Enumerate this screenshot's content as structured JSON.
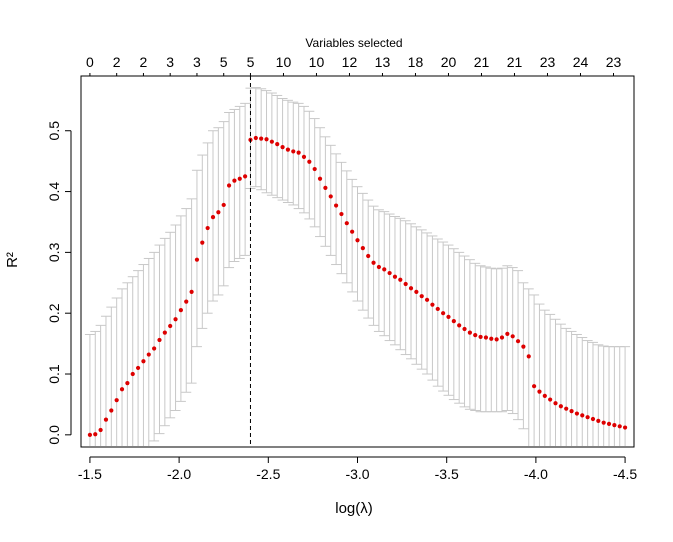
{
  "chart_data": {
    "type": "scatter",
    "title": "",
    "xlabel": "log(λ)",
    "ylabel": "R²",
    "top_axis_label": "Variables selected",
    "xlim": [
      -1.45,
      -4.55
    ],
    "ylim": [
      -0.02,
      0.59
    ],
    "x_ticks": [
      -1.5,
      -2.0,
      -2.5,
      -3.0,
      -3.5,
      -4.0,
      -4.5
    ],
    "x_tick_labels": [
      "-1.5",
      "-2.0",
      "-2.5",
      "-3.0",
      "-3.5",
      "-4.0",
      "-4.5"
    ],
    "y_ticks": [
      0.0,
      0.1,
      0.2,
      0.3,
      0.4,
      0.5
    ],
    "y_tick_labels": [
      "0.0",
      "0.1",
      "0.2",
      "0.3",
      "0.4",
      "0.5"
    ],
    "top_ticks": {
      "x": [
        -1.5,
        -1.65,
        -1.8,
        -1.95,
        -2.1,
        -2.25,
        -2.4,
        -2.585,
        -2.77,
        -2.955,
        -3.14,
        -3.325,
        -3.51,
        -3.695,
        -3.88,
        -4.065,
        -4.25,
        -4.435
      ],
      "labels": [
        "0",
        "2",
        "2",
        "3",
        "3",
        "5",
        "5",
        "10",
        "10",
        "12",
        "13",
        "18",
        "20",
        "21",
        "21",
        "23",
        "24",
        "23"
      ]
    },
    "vline_x": -2.4,
    "grid": false,
    "legend": "none",
    "point_color": "#dd0000",
    "errorbar_color": "#c8c8c8",
    "series": [
      {
        "x": [
          -1.5,
          -1.53,
          -1.56,
          -1.59,
          -1.62,
          -1.65,
          -1.68,
          -1.71,
          -1.74,
          -1.77,
          -1.8,
          -1.83,
          -1.86,
          -1.89,
          -1.92,
          -1.95,
          -1.98,
          -2.01,
          -2.04,
          -2.07,
          -2.1,
          -2.13,
          -2.16,
          -2.19,
          -2.22,
          -2.25,
          -2.28,
          -2.31,
          -2.34,
          -2.37,
          -2.4,
          -2.43,
          -2.46,
          -2.49,
          -2.52,
          -2.55,
          -2.58,
          -2.61,
          -2.64,
          -2.67,
          -2.7,
          -2.73,
          -2.76,
          -2.79,
          -2.82,
          -2.85,
          -2.88,
          -2.91,
          -2.94,
          -2.97,
          -3.0,
          -3.03,
          -3.06,
          -3.09,
          -3.12,
          -3.15,
          -3.18,
          -3.21,
          -3.24,
          -3.27,
          -3.3,
          -3.33,
          -3.36,
          -3.39,
          -3.42,
          -3.45,
          -3.48,
          -3.51,
          -3.54,
          -3.57,
          -3.6,
          -3.63,
          -3.66,
          -3.69,
          -3.72,
          -3.75,
          -3.78,
          -3.81,
          -3.84,
          -3.87,
          -3.9,
          -3.93,
          -3.96,
          -3.99,
          -4.02,
          -4.05,
          -4.08,
          -4.11,
          -4.14,
          -4.17,
          -4.2,
          -4.23,
          -4.26,
          -4.29,
          -4.32,
          -4.35,
          -4.38,
          -4.41,
          -4.44,
          -4.47,
          -4.5
        ],
        "y": [
          0.0,
          0.001,
          0.008,
          0.025,
          0.04,
          0.057,
          0.075,
          0.085,
          0.1,
          0.11,
          0.121,
          0.132,
          0.142,
          0.156,
          0.168,
          0.179,
          0.19,
          0.205,
          0.219,
          0.235,
          0.288,
          0.316,
          0.34,
          0.358,
          0.366,
          0.378,
          0.41,
          0.418,
          0.421,
          0.425,
          0.485,
          0.488,
          0.487,
          0.486,
          0.482,
          0.478,
          0.473,
          0.469,
          0.466,
          0.464,
          0.457,
          0.449,
          0.437,
          0.421,
          0.406,
          0.392,
          0.377,
          0.363,
          0.348,
          0.334,
          0.32,
          0.307,
          0.294,
          0.283,
          0.276,
          0.272,
          0.266,
          0.26,
          0.255,
          0.248,
          0.241,
          0.235,
          0.228,
          0.222,
          0.214,
          0.207,
          0.2,
          0.194,
          0.187,
          0.18,
          0.174,
          0.168,
          0.164,
          0.161,
          0.16,
          0.158,
          0.157,
          0.16,
          0.166,
          0.162,
          0.154,
          0.145,
          0.129,
          0.08,
          0.071,
          0.064,
          0.058,
          0.052,
          0.047,
          0.043,
          0.039,
          0.035,
          0.032,
          0.029,
          0.026,
          0.023,
          0.02,
          0.018,
          0.016,
          0.014,
          0.012
        ],
        "lower": [
          -0.165,
          -0.155,
          -0.145,
          -0.13,
          -0.115,
          -0.1,
          -0.085,
          -0.075,
          -0.06,
          -0.048,
          -0.035,
          -0.022,
          -0.01,
          0.002,
          0.015,
          0.028,
          0.04,
          0.055,
          0.07,
          0.085,
          0.145,
          0.175,
          0.2,
          0.22,
          0.23,
          0.245,
          0.275,
          0.285,
          0.29,
          0.295,
          0.405,
          0.408,
          0.403,
          0.398,
          0.394,
          0.39,
          0.386,
          0.382,
          0.378,
          0.372,
          0.365,
          0.355,
          0.342,
          0.326,
          0.31,
          0.295,
          0.28,
          0.265,
          0.25,
          0.235,
          0.22,
          0.205,
          0.192,
          0.18,
          0.17,
          0.163,
          0.155,
          0.148,
          0.14,
          0.132,
          0.125,
          0.116,
          0.108,
          0.1,
          0.09,
          0.08,
          0.072,
          0.065,
          0.058,
          0.052,
          0.046,
          0.042,
          0.04,
          0.038,
          0.038,
          0.038,
          0.038,
          0.038,
          0.04,
          0.035,
          0.025,
          0.01,
          -0.02,
          -0.095,
          -0.1,
          -0.105,
          -0.11,
          -0.115,
          -0.12,
          -0.122,
          -0.124,
          -0.126,
          -0.128,
          -0.128,
          -0.13,
          -0.13,
          -0.13,
          -0.13,
          -0.13,
          -0.13,
          -0.13
        ],
        "upper": [
          0.165,
          0.17,
          0.18,
          0.195,
          0.21,
          0.225,
          0.24,
          0.25,
          0.26,
          0.27,
          0.28,
          0.29,
          0.3,
          0.312,
          0.323,
          0.333,
          0.345,
          0.36,
          0.372,
          0.388,
          0.435,
          0.46,
          0.48,
          0.5,
          0.505,
          0.515,
          0.53,
          0.535,
          0.54,
          0.545,
          0.57,
          0.571,
          0.569,
          0.566,
          0.562,
          0.558,
          0.553,
          0.55,
          0.547,
          0.545,
          0.54,
          0.532,
          0.52,
          0.505,
          0.49,
          0.476,
          0.462,
          0.448,
          0.434,
          0.42,
          0.408,
          0.397,
          0.386,
          0.376,
          0.37,
          0.367,
          0.363,
          0.359,
          0.356,
          0.352,
          0.347,
          0.342,
          0.337,
          0.332,
          0.327,
          0.322,
          0.317,
          0.312,
          0.306,
          0.3,
          0.294,
          0.288,
          0.282,
          0.278,
          0.276,
          0.274,
          0.273,
          0.274,
          0.278,
          0.275,
          0.27,
          0.25,
          0.24,
          0.23,
          0.215,
          0.205,
          0.198,
          0.19,
          0.182,
          0.175,
          0.17,
          0.165,
          0.16,
          0.155,
          0.152,
          0.148,
          0.146,
          0.145,
          0.145,
          0.145,
          0.145
        ]
      }
    ]
  }
}
